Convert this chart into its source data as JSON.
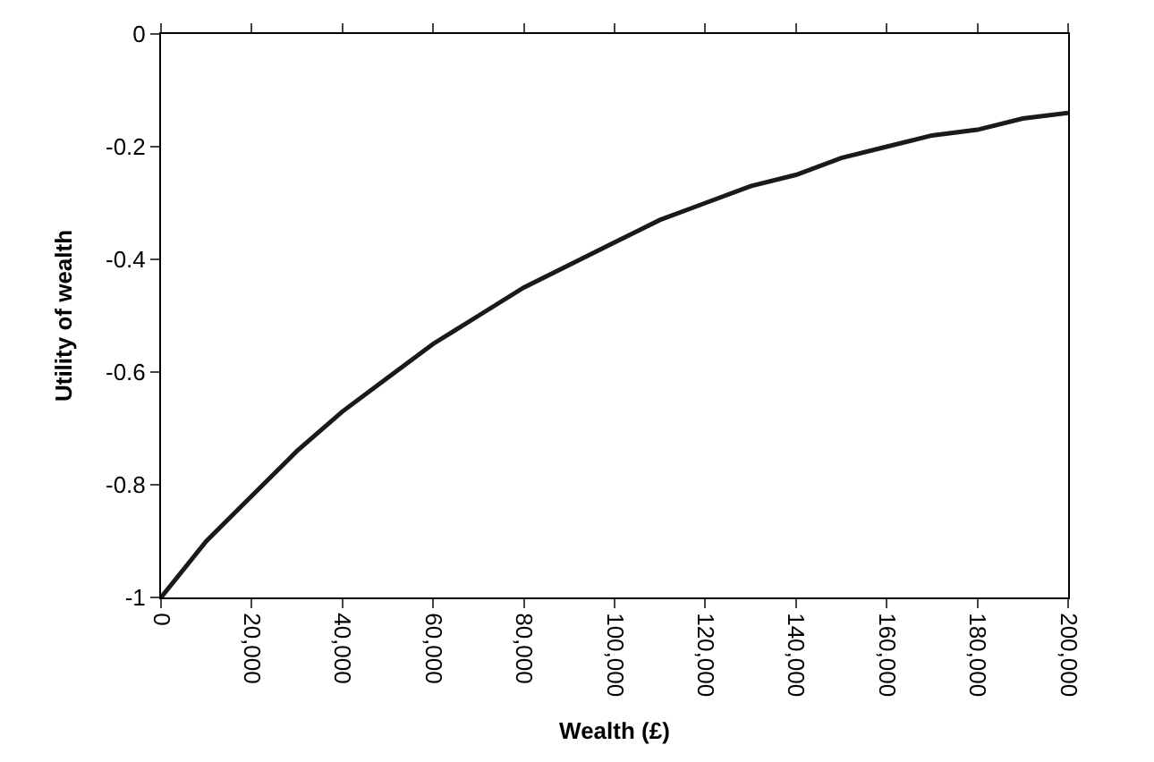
{
  "chart_data": {
    "type": "line",
    "xlabel": "Wealth (£)",
    "ylabel": "Utility of wealth",
    "x": [
      0,
      10000,
      20000,
      30000,
      40000,
      50000,
      60000,
      70000,
      80000,
      90000,
      100000,
      110000,
      120000,
      130000,
      140000,
      150000,
      160000,
      170000,
      180000,
      190000,
      200000
    ],
    "series": [
      {
        "color": "#1a1a1a",
        "values": [
          -1,
          -0.9,
          -0.82,
          -0.74,
          -0.67,
          -0.61,
          -0.55,
          -0.5,
          -0.45,
          -0.41,
          -0.37,
          -0.33,
          -0.3,
          -0.27,
          -0.25,
          -0.22,
          -0.2,
          -0.18,
          -0.17,
          -0.15,
          -0.14
        ]
      }
    ],
    "xlim": [
      0,
      200000
    ],
    "xticks": [
      0,
      {
        "value": 20000,
        "label": "20,000"
      },
      {
        "value": 40000,
        "label": "40,000"
      },
      {
        "value": 60000,
        "label": "60,000"
      },
      {
        "value": 80000,
        "label": "80,000"
      },
      {
        "value": 100000,
        "label": "100,000"
      },
      {
        "value": 120000,
        "label": "120,000"
      },
      {
        "value": 140000,
        "label": "140,000"
      },
      {
        "value": 160000,
        "label": "160,000"
      },
      {
        "value": 180000,
        "label": "180,000"
      },
      {
        "value": 200000,
        "label": "200,000"
      }
    ],
    "ylim": [
      -1,
      0
    ],
    "yticks": [
      -1,
      -0.8,
      -0.6,
      -0.4,
      -0.2,
      0
    ],
    "marker": "none",
    "line_style": "solid"
  }
}
